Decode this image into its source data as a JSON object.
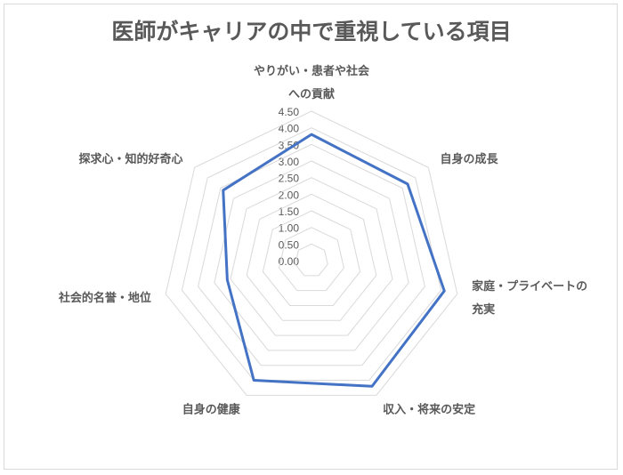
{
  "chart_data": {
    "type": "radar",
    "title": "医師がキャリアの中で重視している項目",
    "categories": [
      "やりがい・患者や社会への貢献",
      "自身の成長",
      "家庭・プライベートの充実",
      "収入・将来の安定",
      "自身の健康",
      "社会的名誉・地位",
      "探求心・知的好奇心"
    ],
    "category_lines": [
      [
        "やりがい・患者や社会",
        "への貢献"
      ],
      [
        "自身の成長"
      ],
      [
        "家庭・プライベートの",
        "充実"
      ],
      [
        "収入・将来の安定"
      ],
      [
        "自身の健康"
      ],
      [
        "社会的名誉・地位"
      ],
      [
        "探求心・知的好奇心"
      ]
    ],
    "values": [
      3.8,
      3.7,
      4.1,
      4.2,
      4.0,
      2.6,
      3.4
    ],
    "rlim": [
      0,
      4.5
    ],
    "ticks": [
      "0.00",
      "0.50",
      "1.00",
      "1.50",
      "2.00",
      "2.50",
      "3.00",
      "3.50",
      "4.00",
      "4.50"
    ],
    "grid": true,
    "line_color": "#4472c4",
    "grid_color": "#d9d9d9"
  }
}
